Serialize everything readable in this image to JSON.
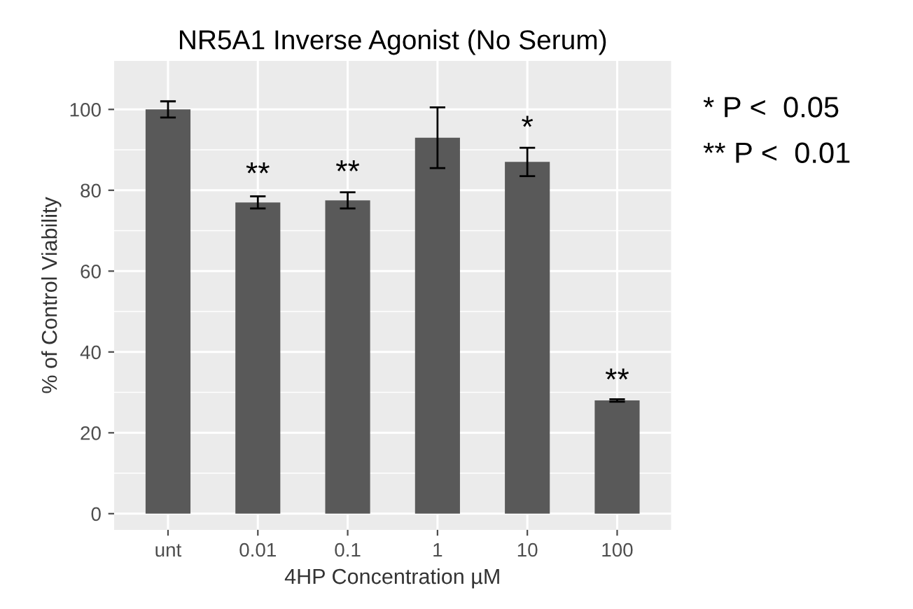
{
  "chart_data": {
    "type": "bar",
    "title": "NR5A1 Inverse Agonist (No Serum)",
    "xlabel": "4HP Concentration µM",
    "ylabel": "% of Control Viability",
    "categories": [
      "unt",
      "0.01",
      "0.1",
      "1",
      "10",
      "100"
    ],
    "values": [
      100,
      77,
      77.5,
      93,
      87,
      28
    ],
    "color": "#595959",
    "errors": [
      2,
      1.5,
      2,
      7.5,
      3.5,
      0.3
    ],
    "ylim": [
      -4,
      112
    ],
    "yticks": [
      0,
      20,
      40,
      60,
      80,
      100
    ],
    "grid": true,
    "annotations": [
      {
        "text": "**",
        "x": "0.01",
        "y": 80
      },
      {
        "text": "**",
        "x": "0.1",
        "y": 80.5
      },
      {
        "text": "*",
        "x": "10",
        "y": 91.5
      },
      {
        "text": "**",
        "x": "100",
        "y": 29
      },
      "* P <  0.05",
      "** P <  0.01"
    ]
  }
}
